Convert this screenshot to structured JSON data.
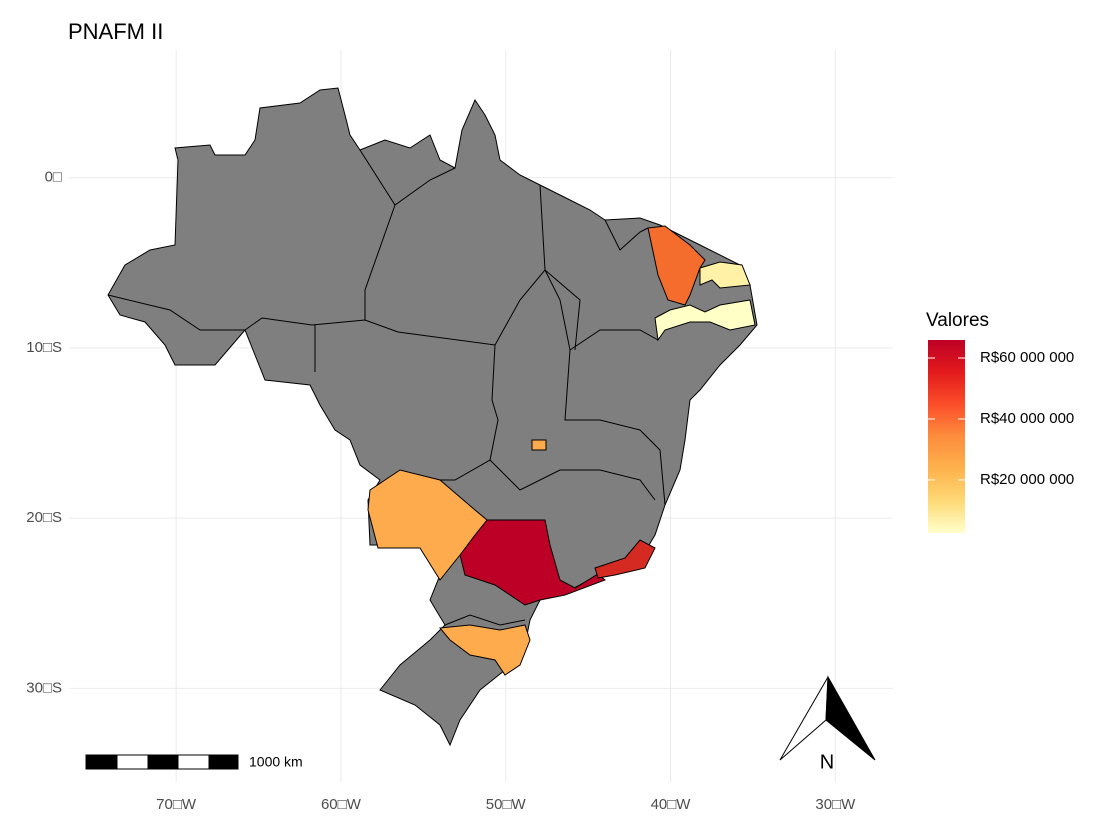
{
  "chart_data": {
    "type": "choropleth",
    "title": "PNAFM II",
    "xlim": [
      -76.5,
      -26.5
    ],
    "ylim": [
      7.5,
      -35.5
    ],
    "xticks": [
      {
        "value": -70,
        "label": "70□W"
      },
      {
        "value": -60,
        "label": "60□W"
      },
      {
        "value": -50,
        "label": "50□W"
      },
      {
        "value": -40,
        "label": "40□W"
      },
      {
        "value": -30,
        "label": "30□W"
      }
    ],
    "yticks": [
      {
        "value": 0,
        "label": "0□"
      },
      {
        "value": -10,
        "label": "10□S"
      },
      {
        "value": -20,
        "label": "20□S"
      },
      {
        "value": -30,
        "label": "30□S"
      }
    ],
    "grid": true,
    "base_color": "#7f7f7f",
    "regions": [
      {
        "value": 63000000,
        "color": "#bd0026"
      },
      {
        "value": 55000000,
        "color": "#d42a22"
      },
      {
        "value": 42000000,
        "color": "#f46d2c"
      },
      {
        "value": 25000000,
        "color": "#fdab4c"
      },
      {
        "value": 25000000,
        "color": "#fdab4c"
      },
      {
        "value": 25000000,
        "color": "#fdab4c"
      },
      {
        "value": 5000000,
        "color": "#fff2a6"
      },
      {
        "value": 3000000,
        "color": "#ffffc6"
      }
    ],
    "legend": {
      "title": "Valores",
      "lim": [
        2600000,
        65900000
      ],
      "colors": [
        "#ffffcc",
        "#fed976",
        "#feb24c",
        "#fd8d3c",
        "#fc4e2a",
        "#e31a1c",
        "#bd0026"
      ],
      "ticks": [
        {
          "value": 20000000,
          "label": "R$20 000 000"
        },
        {
          "value": 40000000,
          "label": "R$40 000 000"
        },
        {
          "value": 60000000,
          "label": "R$60 000 000"
        }
      ]
    },
    "scale_bar": "1000 km",
    "north_label": "N"
  }
}
